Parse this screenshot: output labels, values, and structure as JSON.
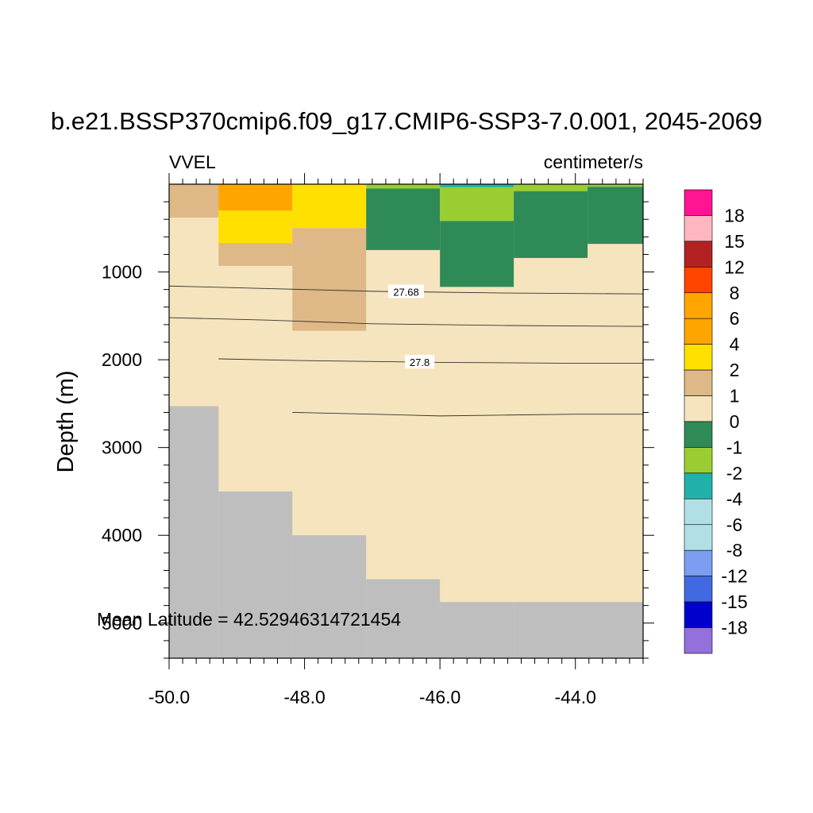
{
  "chart_data": {
    "type": "heatmap",
    "title": "b.e21.BSSP370cmip6.f09_g17.CMIP6-SSP3-7.0.001, 2045-2069",
    "left_label": "VVEL",
    "right_label": "centimeter/s",
    "ylabel": "Depth (m)",
    "xlabel": "",
    "annotation": "Mean Latitude = 42.52946314721454",
    "xlim": [
      -50.0,
      -43.0
    ],
    "ylim": [
      5400,
      0
    ],
    "y_reversed": true,
    "x_tick_labels": [
      "-50.0",
      "-48.0",
      "-46.0",
      "-44.0"
    ],
    "x_ticks": [
      -50.0,
      -48.0,
      -46.0,
      -44.0
    ],
    "y_tick_labels": [
      "1000",
      "2000",
      "3000",
      "4000",
      "5000"
    ],
    "y_ticks": [
      1000,
      2000,
      3000,
      4000,
      5000
    ],
    "missing_color": "#bebebe",
    "colorbar": {
      "labels": [
        "18",
        "15",
        "12",
        "8",
        "6",
        "4",
        "2",
        "1",
        "0",
        "-1",
        "-2",
        "-4",
        "-6",
        "-8",
        "-12",
        "-15",
        "-18"
      ],
      "colors": [
        "#ff1493",
        "#ffb6c1",
        "#b22222",
        "#ff4500",
        "#ffa500",
        "#ffa500",
        "#ffe000",
        "#deb887",
        "#f5e4bd",
        "#2e8b57",
        "#9acd32",
        "#20b2aa",
        "#b0e0e6",
        "#b0e0e6",
        "#7b9ef0",
        "#4169e1",
        "#0000cd",
        "#9370db"
      ]
    },
    "cells": [
      {
        "x0": -50.0,
        "x1": -49.27,
        "d0": 0,
        "d1": 380,
        "value": 1.5
      },
      {
        "x0": -49.27,
        "x1": -48.18,
        "d0": 0,
        "d1": 300,
        "value": 5
      },
      {
        "x0": -49.27,
        "x1": -48.18,
        "d0": 300,
        "d1": 670,
        "value": 3
      },
      {
        "x0": -49.27,
        "x1": -48.18,
        "d0": 670,
        "d1": 930,
        "value": 1.5
      },
      {
        "x0": -48.18,
        "x1": -47.09,
        "d0": 0,
        "d1": 500,
        "value": 3
      },
      {
        "x0": -48.18,
        "x1": -47.09,
        "d0": 500,
        "d1": 1670,
        "value": 1.5
      },
      {
        "x0": -47.09,
        "x1": -46.0,
        "d0": 0,
        "d1": 50,
        "value": -1.5
      },
      {
        "x0": -47.09,
        "x1": -46.0,
        "d0": 50,
        "d1": 750,
        "value": -0.5
      },
      {
        "x0": -46.0,
        "x1": -44.91,
        "d0": 0,
        "d1": 35,
        "value": -3
      },
      {
        "x0": -46.0,
        "x1": -44.91,
        "d0": 35,
        "d1": 420,
        "value": -1.5
      },
      {
        "x0": -46.0,
        "x1": -44.91,
        "d0": 420,
        "d1": 1170,
        "value": -0.5
      },
      {
        "x0": -44.91,
        "x1": -43.82,
        "d0": 0,
        "d1": 80,
        "value": -1.5
      },
      {
        "x0": -44.91,
        "x1": -43.82,
        "d0": 80,
        "d1": 840,
        "value": -0.5
      },
      {
        "x0": -43.82,
        "x1": -43.0,
        "d0": 0,
        "d1": 30,
        "value": -1.5
      },
      {
        "x0": -43.82,
        "x1": -43.0,
        "d0": 30,
        "d1": 680,
        "value": -0.5
      }
    ],
    "bathymetry": [
      {
        "x0": -50.0,
        "x1": -49.27,
        "depth": 2530
      },
      {
        "x0": -49.27,
        "x1": -48.18,
        "depth": 3500
      },
      {
        "x0": -48.18,
        "x1": -47.09,
        "depth": 4000
      },
      {
        "x0": -47.09,
        "x1": -46.0,
        "depth": 4500
      },
      {
        "x0": -46.0,
        "x1": -44.91,
        "depth": 4760
      },
      {
        "x0": -44.91,
        "x1": -43.0,
        "depth": 4760
      }
    ],
    "contours": [
      {
        "label": "27.68",
        "label_x": -46.5,
        "points": [
          [
            -50.0,
            1160
          ],
          [
            -48.5,
            1190
          ],
          [
            -47.0,
            1220
          ],
          [
            -45.0,
            1240
          ],
          [
            -43.0,
            1250
          ]
        ]
      },
      {
        "label": "",
        "label_x": null,
        "points": [
          [
            -50.0,
            1520
          ],
          [
            -48.5,
            1550
          ],
          [
            -47.0,
            1590
          ],
          [
            -45.0,
            1610
          ],
          [
            -43.0,
            1620
          ]
        ]
      },
      {
        "label": "27.8",
        "label_x": -46.3,
        "points": [
          [
            -49.27,
            1990
          ],
          [
            -48.0,
            2010
          ],
          [
            -46.0,
            2030
          ],
          [
            -44.0,
            2040
          ],
          [
            -43.0,
            2040
          ]
        ]
      },
      {
        "label": "",
        "label_x": null,
        "points": [
          [
            -48.18,
            2600
          ],
          [
            -47.0,
            2620
          ],
          [
            -46.0,
            2640
          ],
          [
            -45.0,
            2630
          ],
          [
            -44.0,
            2620
          ],
          [
            -43.0,
            2620
          ]
        ]
      }
    ]
  }
}
